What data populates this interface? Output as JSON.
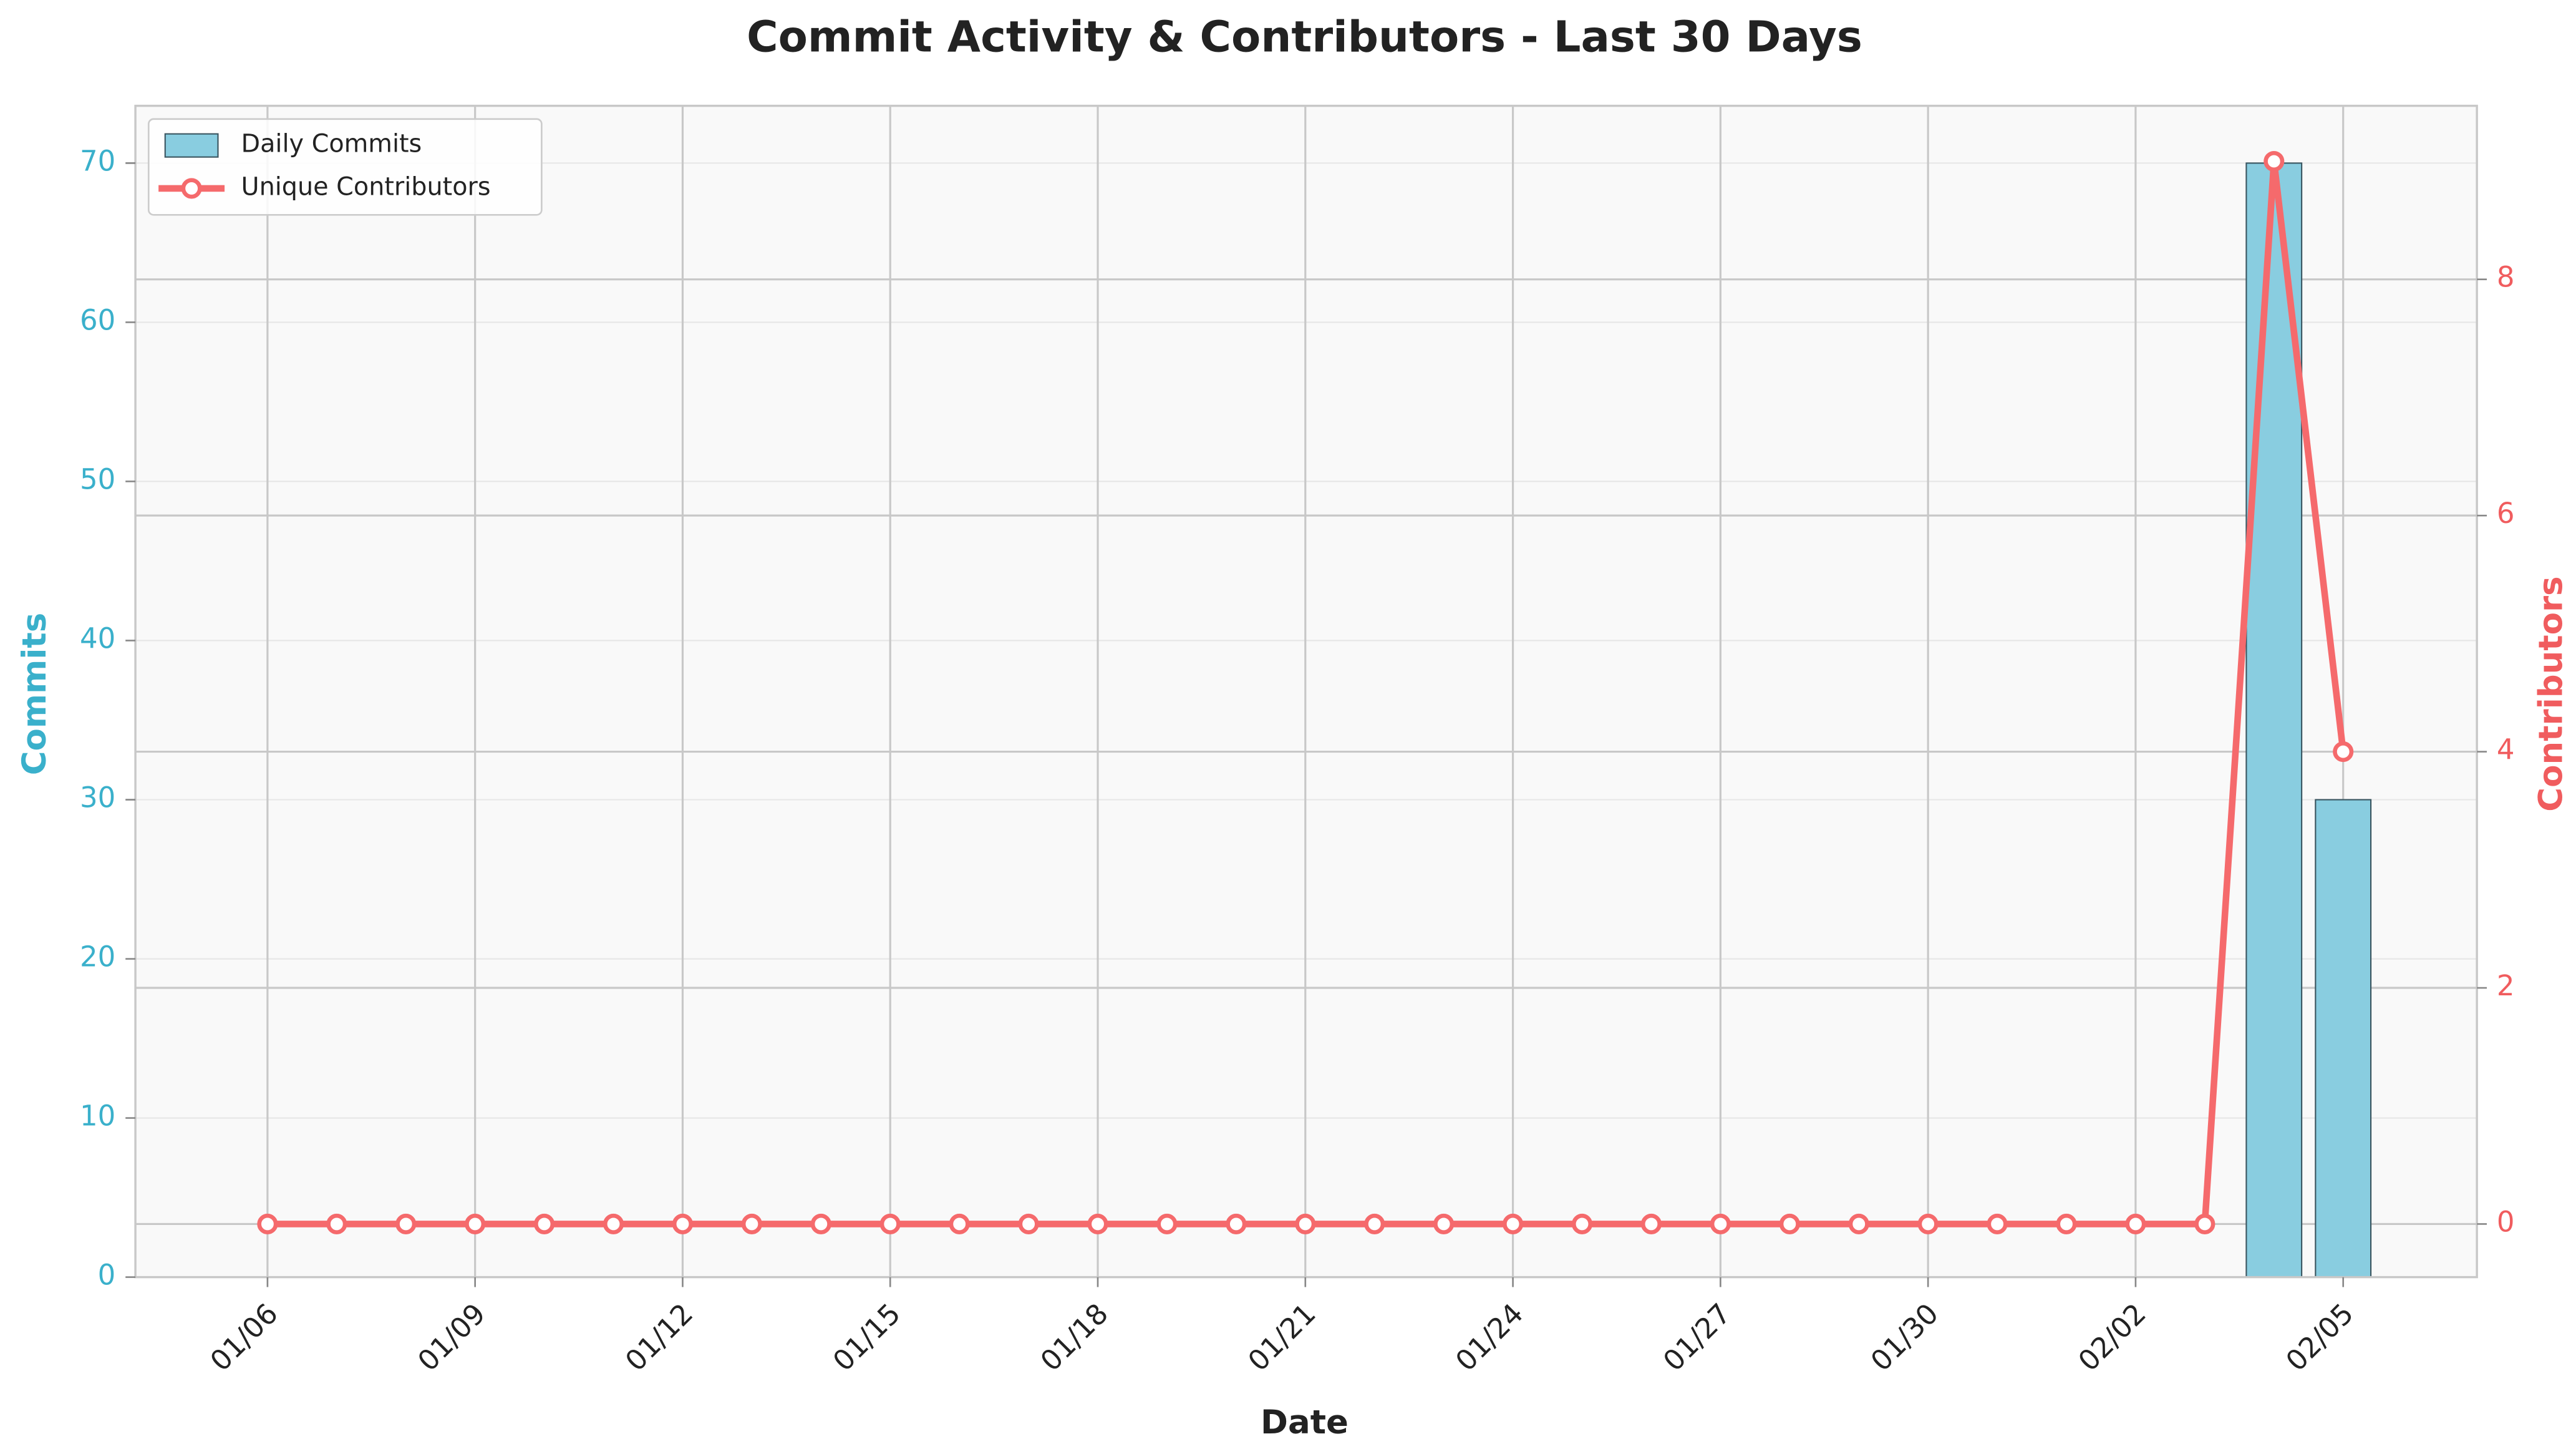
{
  "chart_data": {
    "type": "bar",
    "title": "Commit Activity & Contributors - Last 30 Days",
    "xlabel": "Date",
    "ylabel": "Commits",
    "y2label": "Contributors",
    "categories": [
      "01/06",
      null,
      null,
      "01/09",
      null,
      null,
      "01/12",
      null,
      null,
      "01/15",
      null,
      null,
      "01/18",
      null,
      null,
      "01/21",
      null,
      null,
      "01/24",
      null,
      null,
      "01/27",
      null,
      null,
      "01/30",
      null,
      null,
      "02/02",
      null,
      null,
      "02/05"
    ],
    "series": [
      {
        "name": "Daily Commits",
        "type": "bar",
        "color": "#89cde0",
        "values": [
          0,
          0,
          0,
          0,
          0,
          0,
          0,
          0,
          0,
          0,
          0,
          0,
          0,
          0,
          0,
          0,
          0,
          0,
          0,
          0,
          0,
          0,
          0,
          0,
          0,
          0,
          0,
          0,
          0,
          70,
          30
        ]
      },
      {
        "name": "Unique Contributors",
        "type": "line",
        "color": "#f56a6c",
        "axis": "y2",
        "values": [
          0,
          0,
          0,
          0,
          0,
          0,
          0,
          0,
          0,
          0,
          0,
          0,
          0,
          0,
          0,
          0,
          0,
          0,
          0,
          0,
          0,
          0,
          0,
          0,
          0,
          0,
          0,
          0,
          0,
          9,
          4
        ]
      }
    ],
    "ylim": [
      0,
      73.6
    ],
    "yticks": [
      0,
      10,
      20,
      30,
      40,
      50,
      60,
      70
    ],
    "y2lim": [
      -0.45,
      9.47
    ],
    "y2ticks": [
      0,
      2,
      4,
      6,
      8
    ],
    "ycolor": "#3ab0cb",
    "y2color": "#f05c5e",
    "grid": true,
    "legend": "upper left"
  }
}
